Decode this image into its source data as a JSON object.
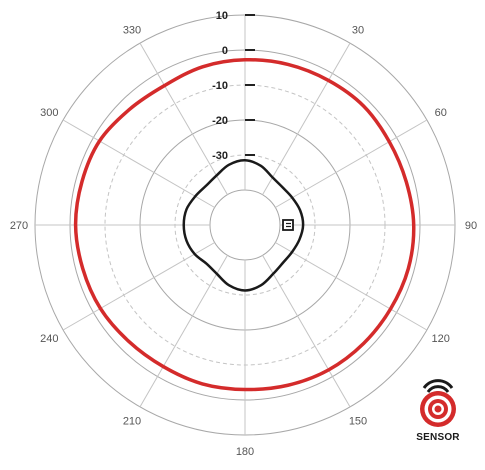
{
  "chart_data": {
    "type": "polar",
    "angle_unit": "degrees",
    "angle_zero": "top",
    "angle_direction": "clockwise",
    "angle_ticks": [
      0,
      30,
      60,
      90,
      120,
      150,
      180,
      210,
      240,
      270,
      300,
      330
    ],
    "angle_tick_labels": [
      "",
      "30",
      "60",
      "90",
      "120",
      "150",
      "180",
      "210",
      "240",
      "270",
      "300",
      "330"
    ],
    "r_ticks": [
      10,
      0,
      -10,
      -20,
      -30
    ],
    "r_tick_labels": [
      "10",
      "0",
      "-10",
      "-20",
      "-30"
    ],
    "r_range": [
      -50,
      10
    ],
    "grid": true,
    "grid_rings": [
      {
        "r": 10,
        "style": "solid"
      },
      {
        "r": 0,
        "style": "solid"
      },
      {
        "r": -10,
        "style": "dashed"
      },
      {
        "r": -20,
        "style": "solid"
      },
      {
        "r": -30,
        "style": "dashed"
      },
      {
        "r": -40,
        "style": "solid"
      }
    ],
    "series": [
      {
        "color": "#d42b2b",
        "points": [
          [
            0,
            -2.8
          ],
          [
            15,
            -2.5
          ],
          [
            30,
            -2.3
          ],
          [
            45,
            -2.0
          ],
          [
            60,
            -2.4
          ],
          [
            75,
            -2.3
          ],
          [
            90,
            -1.8
          ],
          [
            105,
            -1.7
          ],
          [
            120,
            -2.0
          ],
          [
            135,
            -2.1
          ],
          [
            150,
            -2.2
          ],
          [
            165,
            -2.6
          ],
          [
            180,
            -3.0
          ],
          [
            195,
            -3.0
          ],
          [
            210,
            -3.3
          ],
          [
            225,
            -3.0
          ],
          [
            240,
            -2.3
          ],
          [
            255,
            -2.0
          ],
          [
            270,
            -1.6
          ],
          [
            285,
            -1.8
          ],
          [
            300,
            -2.0
          ],
          [
            315,
            -3.3
          ],
          [
            330,
            -4.0
          ],
          [
            345,
            -3.2
          ]
        ]
      },
      {
        "color": "#1a1a1a",
        "points": [
          [
            0,
            -31.5
          ],
          [
            15,
            -32.5
          ],
          [
            30,
            -34.3
          ],
          [
            45,
            -34.8
          ],
          [
            60,
            -34.4
          ],
          [
            75,
            -33.7
          ],
          [
            90,
            -33.4
          ],
          [
            105,
            -33.9
          ],
          [
            120,
            -34.5
          ],
          [
            135,
            -34.7
          ],
          [
            150,
            -33.9
          ],
          [
            165,
            -32.2
          ],
          [
            180,
            -31.3
          ],
          [
            195,
            -32.2
          ],
          [
            210,
            -33.9
          ],
          [
            225,
            -34.4
          ],
          [
            240,
            -33.4
          ],
          [
            255,
            -32.7
          ],
          [
            270,
            -32.5
          ],
          [
            285,
            -32.7
          ],
          [
            300,
            -33.6
          ],
          [
            315,
            -34.2
          ],
          [
            330,
            -33.7
          ],
          [
            345,
            -32.2
          ]
        ]
      }
    ]
  },
  "logo": {
    "text": "SENSOR",
    "ring_color": "#d42b2b",
    "wave_color": "#1a1a1a"
  }
}
